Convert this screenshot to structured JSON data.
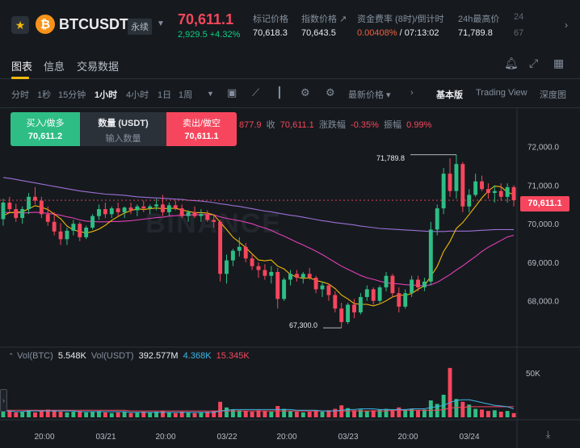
{
  "header": {
    "symbol": "BTCUSDT",
    "contract_type": "永续",
    "last_price": "70,611.1",
    "change": "2,929.5 +4.32%",
    "stats": [
      {
        "label": "标记价格",
        "value": "70,618.3"
      },
      {
        "label": "指数价格 ↗",
        "value": "70,643.5"
      },
      {
        "label": "资金费率 (8时)/倒计时",
        "value_a": "0.00408%",
        "value_b": " / 07:13:02"
      },
      {
        "label": "24h最高价",
        "value": "71,789.8"
      },
      {
        "label": "24",
        "value": "67"
      }
    ]
  },
  "tabs": [
    "图表",
    "信息",
    "交易数据"
  ],
  "toolbar": {
    "timeframes": [
      "分时",
      "1秒",
      "15分钟",
      "1小时",
      "4小时",
      "1日",
      "1周"
    ],
    "active_timeframe": "1小时",
    "price_type": "最新价格",
    "views": [
      "基本版",
      "Trading View",
      "深度图"
    ],
    "active_view": "基本版"
  },
  "order_widget": {
    "buy_label": "买入/做多",
    "buy_price": "70,611.2",
    "qty_label": "数量 (USDT)",
    "qty_placeholder": "输入数量",
    "sell_label": "卖出/做空",
    "sell_price": "70,611.1"
  },
  "ohlc_bar": {
    "prefix": "877.9",
    "close_label": "收",
    "close": "70,611.1",
    "chg_label": "涨跌幅",
    "chg": "-0.35%",
    "amp_label": "振幅",
    "amp": "0.99%"
  },
  "watermark": "BINANCE",
  "price_tag": "70,611.1",
  "high_marker": "71,789.8",
  "low_marker": "67,300.0",
  "volume_legend": {
    "btc_label": "Vol(BTC)",
    "btc": "5.548K",
    "usdt_label": "Vol(USDT)",
    "usdt": "392.577M",
    "ma1": "4.368K",
    "ma2": "15.345K"
  },
  "volume_axis_label": "50K",
  "colors": {
    "up": "#2ebd85",
    "down": "#f6465d",
    "accent": "#f0b90b",
    "ma7": "#f0b90b",
    "ma25": "#e13fb7",
    "ma99": "#9b6fd6"
  },
  "chart_data": {
    "type": "candlestick",
    "timeframe": "1小时",
    "y_ticks": [
      72000,
      71000,
      70000,
      69000,
      68000
    ],
    "y_tick_labels": [
      "72,000.0",
      "71,000.0",
      "70,000.0",
      "69,000.0",
      "68,000.0"
    ],
    "ylim": [
      66800,
      73000
    ],
    "x_labels": [
      "20:00",
      "03/21",
      "20:00",
      "03/22",
      "20:00",
      "03/23",
      "20:00",
      "03/24"
    ],
    "ohlc": [
      [
        70120,
        70650,
        69950,
        70550
      ],
      [
        70550,
        70700,
        70300,
        70380
      ],
      [
        70380,
        70520,
        70050,
        70150
      ],
      [
        70150,
        70450,
        70000,
        70380
      ],
      [
        70380,
        70800,
        70250,
        70700
      ],
      [
        70700,
        70950,
        70500,
        70600
      ],
      [
        70600,
        70700,
        70150,
        70250
      ],
      [
        70250,
        70450,
        69950,
        70050
      ],
      [
        70050,
        70300,
        69700,
        69800
      ],
      [
        69800,
        70020,
        69450,
        69600
      ],
      [
        69600,
        69900,
        69450,
        69820
      ],
      [
        69820,
        70100,
        69700,
        70000
      ],
      [
        70000,
        70050,
        69550,
        69650
      ],
      [
        69650,
        69950,
        69600,
        69900
      ],
      [
        69900,
        70250,
        69850,
        70200
      ],
      [
        70200,
        70500,
        70100,
        70380
      ],
      [
        70380,
        70550,
        70150,
        70250
      ],
      [
        70250,
        70450,
        70150,
        70400
      ],
      [
        70400,
        70550,
        70200,
        70300
      ],
      [
        70300,
        70450,
        70150,
        70420
      ],
      [
        70420,
        70550,
        70250,
        70350
      ],
      [
        70350,
        70500,
        70200,
        70450
      ],
      [
        70450,
        70600,
        70300,
        70400
      ],
      [
        70400,
        70500,
        70250,
        70450
      ],
      [
        70450,
        70650,
        70350,
        70500
      ],
      [
        70500,
        70750,
        70200,
        70300
      ],
      [
        70300,
        70550,
        70200,
        70480
      ],
      [
        70480,
        70600,
        70350,
        70400
      ],
      [
        70400,
        70500,
        70150,
        70200
      ],
      [
        70200,
        70350,
        70050,
        70300
      ],
      [
        70300,
        70450,
        70150,
        70200
      ],
      [
        70200,
        70380,
        70050,
        70250
      ],
      [
        70250,
        70350,
        70050,
        70100
      ],
      [
        70100,
        70250,
        69900,
        70050
      ],
      [
        70050,
        70100,
        68500,
        68700
      ],
      [
        68700,
        69200,
        68450,
        69050
      ],
      [
        69050,
        69350,
        68900,
        69300
      ],
      [
        69300,
        69650,
        69150,
        69400
      ],
      [
        69400,
        69500,
        69000,
        69100
      ],
      [
        69100,
        69200,
        68800,
        68900
      ],
      [
        68900,
        69000,
        68600,
        68800
      ],
      [
        68800,
        68950,
        68550,
        68650
      ],
      [
        68650,
        68900,
        68450,
        68750
      ],
      [
        68750,
        68850,
        67800,
        68050
      ],
      [
        68050,
        68600,
        68000,
        68550
      ],
      [
        68550,
        68800,
        68400,
        68700
      ],
      [
        68700,
        68800,
        68500,
        68600
      ],
      [
        68600,
        68750,
        68450,
        68700
      ],
      [
        68700,
        68850,
        68550,
        68600
      ],
      [
        68600,
        68650,
        68200,
        68300
      ],
      [
        68300,
        68500,
        68100,
        68400
      ],
      [
        68400,
        68450,
        68000,
        68150
      ],
      [
        68150,
        68250,
        67700,
        67800
      ],
      [
        67800,
        67950,
        67300,
        67450
      ],
      [
        67450,
        67950,
        67400,
        67900
      ],
      [
        67900,
        68050,
        67550,
        67700
      ],
      [
        67700,
        68200,
        67650,
        68100
      ],
      [
        68100,
        68400,
        68000,
        68300
      ],
      [
        68300,
        68350,
        67900,
        68000
      ],
      [
        68000,
        68400,
        67950,
        68350
      ],
      [
        68350,
        68750,
        68250,
        68650
      ],
      [
        68650,
        68700,
        68100,
        68200
      ],
      [
        68200,
        68350,
        67700,
        67850
      ],
      [
        67850,
        68300,
        67800,
        68200
      ],
      [
        68200,
        68650,
        68100,
        68550
      ],
      [
        68550,
        68650,
        68250,
        68350
      ],
      [
        68350,
        68600,
        68250,
        68500
      ],
      [
        68500,
        70050,
        68400,
        69850
      ],
      [
        69850,
        70500,
        69700,
        70400
      ],
      [
        70400,
        71450,
        70250,
        71300
      ],
      [
        71300,
        71700,
        70700,
        70850
      ],
      [
        70850,
        71789.8,
        70650,
        71550
      ],
      [
        71550,
        71600,
        70300,
        70450
      ],
      [
        70450,
        70900,
        70300,
        70750
      ],
      [
        70750,
        71300,
        70700,
        71100
      ],
      [
        71100,
        71250,
        70850,
        70900
      ],
      [
        70900,
        71050,
        70650,
        70800
      ],
      [
        70800,
        71000,
        70550,
        70850
      ],
      [
        70850,
        71050,
        70600,
        70700
      ],
      [
        70700,
        71050,
        70550,
        70950
      ],
      [
        70950,
        71000,
        70450,
        70611.1
      ]
    ],
    "ma7": [
      70210,
      70290,
      70300,
      70310,
      70390,
      70470,
      70430,
      70370,
      70250,
      70130,
      69940,
      69840,
      69800,
      69760,
      69800,
      69860,
      69960,
      70090,
      70190,
      70280,
      70340,
      70390,
      70370,
      70390,
      70410,
      70390,
      70400,
      70400,
      70360,
      70320,
      70290,
      70290,
      70280,
      70230,
      70040,
      69850,
      69650,
      69520,
      69380,
      69220,
      69060,
      69040,
      69060,
      68900,
      68830,
      68680,
      68620,
      68580,
      68600,
      68530,
      68490,
      68440,
      68320,
      68150,
      68050,
      67930,
      67910,
      67910,
      67870,
      67920,
      68000,
      68100,
      68150,
      68140,
      68190,
      68300,
      68390,
      68640,
      68890,
      69280,
      69540,
      69880,
      70030,
      70240,
      70450,
      70670,
      70850,
      70980,
      70960,
      70820,
      70760
    ],
    "ma25": [
      70300,
      70290,
      70290,
      70280,
      70290,
      70300,
      70290,
      70270,
      70250,
      70220,
      70180,
      70150,
      70100,
      70070,
      70060,
      70050,
      70050,
      70060,
      70060,
      70070,
      70080,
      70100,
      70120,
      70140,
      70160,
      70170,
      70200,
      70210,
      70220,
      70230,
      70230,
      70240,
      70240,
      70230,
      70180,
      70140,
      70110,
      70080,
      70040,
      70000,
      69940,
      69890,
      69830,
      69750,
      69680,
      69600,
      69520,
      69450,
      69370,
      69290,
      69200,
      69100,
      69000,
      68900,
      68820,
      68740,
      68660,
      68600,
      68560,
      68510,
      68470,
      68450,
      68440,
      68420,
      68410,
      68400,
      68390,
      68420,
      68480,
      68580,
      68680,
      68800,
      68910,
      69030,
      69150,
      69280,
      69390,
      69480,
      69570,
      69660,
      69700
    ],
    "ma99": [
      71200,
      71180,
      71150,
      71120,
      71090,
      71060,
      71030,
      71000,
      70970,
      70940,
      70910,
      70880,
      70850,
      70830,
      70810,
      70790,
      70770,
      70760,
      70750,
      70740,
      70720,
      70700,
      70690,
      70680,
      70670,
      70660,
      70650,
      70640,
      70630,
      70610,
      70600,
      70590,
      70570,
      70550,
      70520,
      70500,
      70470,
      70450,
      70420,
      70390,
      70360,
      70330,
      70310,
      70280,
      70250,
      70220,
      70200,
      70170,
      70140,
      70110,
      70080,
      70060,
      70030,
      70010,
      69990,
      69970,
      69940,
      69920,
      69900,
      69880,
      69870,
      69860,
      69850,
      69840,
      69830,
      69820,
      69810,
      69800,
      69800,
      69800,
      69810,
      69810,
      69810,
      69810,
      69820,
      69830,
      69840,
      69850,
      69850,
      69850,
      69850
    ],
    "volume": [
      8,
      9,
      7,
      8,
      10,
      7,
      9,
      11,
      10,
      8,
      7,
      8,
      9,
      7,
      8,
      9,
      7,
      6,
      7,
      8,
      6,
      7,
      8,
      7,
      8,
      9,
      7,
      6,
      8,
      7,
      6,
      7,
      8,
      9,
      22,
      14,
      11,
      10,
      9,
      8,
      10,
      9,
      8,
      16,
      12,
      9,
      8,
      7,
      8,
      9,
      8,
      10,
      12,
      17,
      13,
      10,
      11,
      9,
      10,
      11,
      12,
      10,
      14,
      11,
      12,
      10,
      11,
      24,
      19,
      32,
      70,
      26,
      22,
      18,
      12,
      11,
      9,
      10,
      8,
      9,
      6
    ],
    "vol_ma1": [
      9,
      9,
      8,
      8,
      9,
      9,
      9,
      9,
      9,
      9,
      9,
      9,
      8,
      8,
      8,
      8,
      8,
      8,
      8,
      8,
      7,
      7,
      7,
      7,
      7,
      7,
      7,
      7,
      7,
      7,
      7,
      7,
      7,
      7,
      9,
      10,
      11,
      11,
      11,
      11,
      11,
      11,
      11,
      11,
      11,
      11,
      10,
      10,
      10,
      10,
      9,
      9,
      9,
      10,
      11,
      11,
      12,
      12,
      12,
      11,
      11,
      11,
      11,
      11,
      12,
      12,
      12,
      14,
      15,
      17,
      21,
      24,
      25,
      25,
      23,
      21,
      19,
      17,
      16,
      15,
      12
    ],
    "vol_ma2": [
      10,
      10,
      10,
      10,
      10,
      10,
      10,
      10,
      10,
      10,
      10,
      10,
      10,
      10,
      10,
      10,
      10,
      10,
      10,
      10,
      9,
      9,
      9,
      9,
      9,
      9,
      9,
      9,
      9,
      9,
      9,
      9,
      9,
      9,
      9,
      9,
      9,
      9,
      9,
      9,
      9,
      9,
      9,
      9,
      9,
      9,
      9,
      9,
      9,
      9,
      9,
      9,
      9,
      9,
      9,
      9,
      9,
      9,
      9,
      9,
      9,
      10,
      10,
      10,
      10,
      10,
      10,
      10,
      10,
      11,
      13,
      14,
      14,
      15,
      15,
      15,
      15,
      15,
      15,
      15,
      15
    ],
    "volume_ylim": [
      0,
      95
    ]
  }
}
